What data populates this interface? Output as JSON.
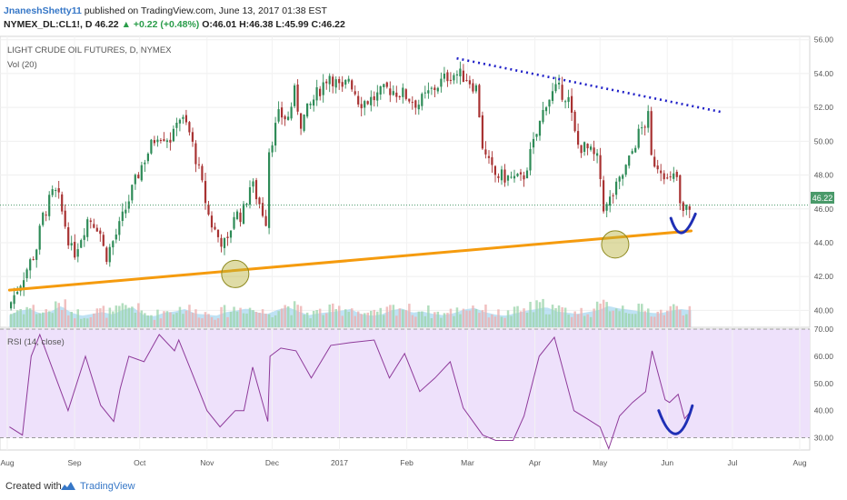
{
  "header": {
    "user": "JnaneshShetty11",
    "published": "published on TradingView.com, June 13, 2017 01:38 EST",
    "symbol": "NYMEX_DL:CL1!, D",
    "last": "46.22",
    "change": "+0.22 (+0.48%)",
    "open": "O:46.01",
    "high": "H:46.38",
    "low": "L:45.99",
    "close": "C:46.22"
  },
  "footer": {
    "created_with": "Created with",
    "brand": "TradingView"
  },
  "chart_data": [
    {
      "type": "line",
      "title": "LIGHT CRUDE OIL FUTURES, D, NYMEX",
      "subtitle": "Vol (20)",
      "last_price_label": "46.22",
      "ylim": [
        39,
        56.2
      ],
      "y_ticks": [
        40,
        42,
        44,
        46,
        48,
        50,
        52,
        54,
        56
      ],
      "y_tick_labels": [
        "40.00",
        "42.00",
        "44.00",
        "46.00",
        "48.00",
        "50.00",
        "52.00",
        "54.00",
        "56.00"
      ],
      "x_ticks": [
        "Aug",
        "Sep",
        "Oct",
        "Nov",
        "Dec",
        "2017",
        "Feb",
        "Mar",
        "Apr",
        "May",
        "Jun",
        "Jul",
        "Aug"
      ],
      "series": [
        {
          "x": [
            "2016-08-02",
            "2016-08-15",
            "2016-08-18",
            "2016-08-23",
            "2016-08-25",
            "2016-09-01",
            "2016-09-06",
            "2016-09-08",
            "2016-09-13",
            "2016-09-16",
            "2016-09-22",
            "2016-09-28",
            "2016-10-03",
            "2016-10-10",
            "2016-10-17",
            "2016-10-19",
            "2016-10-24",
            "2016-10-28",
            "2016-11-03",
            "2016-11-07",
            "2016-11-11",
            "2016-11-14",
            "2016-11-18",
            "2016-11-22",
            "2016-11-29",
            "2016-11-30",
            "2016-12-05",
            "2016-12-09",
            "2016-12-12",
            "2016-12-15",
            "2016-12-21",
            "2016-12-28",
            "2017-01-03",
            "2017-01-06",
            "2017-01-11",
            "2017-01-17",
            "2017-01-24",
            "2017-01-31",
            "2017-02-07",
            "2017-02-14",
            "2017-02-21",
            "2017-02-24",
            "2017-03-01",
            "2017-03-06",
            "2017-03-09",
            "2017-03-14",
            "2017-03-22",
            "2017-03-27",
            "2017-04-03",
            "2017-04-07",
            "2017-04-12",
            "2017-04-17",
            "2017-04-21",
            "2017-04-26",
            "2017-05-01",
            "2017-05-04",
            "2017-05-05",
            "2017-05-10",
            "2017-05-15",
            "2017-05-19",
            "2017-05-24",
            "2017-05-25",
            "2017-05-31",
            "2017-06-02",
            "2017-06-06",
            "2017-06-08",
            "2017-06-12"
          ],
          "values": [
            40.1,
            43.6,
            45.5,
            47.0,
            46.8,
            43.2,
            44.8,
            45.5,
            44.9,
            43.1,
            44.8,
            47.0,
            48.7,
            50.5,
            50.1,
            51.6,
            50.8,
            48.8,
            45.3,
            44.3,
            43.8,
            45.7,
            45.6,
            47.6,
            45.3,
            49.4,
            51.6,
            51.3,
            52.9,
            51.1,
            52.5,
            54.0,
            52.9,
            53.8,
            52.3,
            52.5,
            53.1,
            52.8,
            52.2,
            53.1,
            53.9,
            54.0,
            53.8,
            53.1,
            49.3,
            48.0,
            47.8,
            47.7,
            50.6,
            52.4,
            53.1,
            52.6,
            49.8,
            49.5,
            48.8,
            45.5,
            46.2,
            47.4,
            48.8,
            50.3,
            51.4,
            49.0,
            48.3,
            47.5,
            48.0,
            45.6,
            46.2
          ]
        }
      ],
      "volume": {
        "values": [
          40,
          55,
          60,
          45,
          52,
          70,
          48,
          38,
          44,
          50,
          42,
          58,
          65,
          40,
          36,
          48,
          52,
          60,
          45,
          42,
          38,
          50,
          55,
          62,
          48,
          44,
          58,
          66,
          52,
          40,
          46,
          50,
          54,
          60,
          44,
          38,
          42,
          56,
          62,
          48,
          52,
          44,
          40,
          46,
          58,
          64,
          50,
          42,
          38,
          46,
          54,
          60,
          66,
          52,
          48,
          44,
          50,
          56,
          70,
          62,
          58,
          52,
          48,
          46,
          54,
          60,
          56
        ]
      },
      "annotations": {
        "support_line": {
          "from": [
            "2016-08-02",
            41.2
          ],
          "to": [
            "2017-06-12",
            44.7
          ],
          "color": "#f59b0e"
        },
        "resistance_line": {
          "from": [
            "2017-02-24",
            54.9
          ],
          "to": [
            "2017-06-27",
            51.7
          ],
          "color": "#2020c8"
        },
        "circles": [
          [
            "2016-11-14",
            42.15
          ],
          [
            "2017-05-08",
            43.9
          ]
        ],
        "arc_color": "#1f2fb5"
      }
    },
    {
      "type": "line",
      "title": "RSI (14, close)",
      "ylim": [
        25.5,
        70
      ],
      "y_ticks": [
        30,
        40,
        50,
        60,
        70
      ],
      "y_tick_labels": [
        "30.00",
        "40.00",
        "50.00",
        "60.00",
        "70.00"
      ],
      "band": [
        30,
        70
      ],
      "series": [
        {
          "x": [
            "2016-08-02",
            "2016-08-08",
            "2016-08-12",
            "2016-08-16",
            "2016-08-22",
            "2016-08-29",
            "2016-09-06",
            "2016-09-13",
            "2016-09-19",
            "2016-09-22",
            "2016-09-26",
            "2016-10-03",
            "2016-10-10",
            "2016-10-17",
            "2016-10-19",
            "2016-10-24",
            "2016-11-01",
            "2016-11-07",
            "2016-11-14",
            "2016-11-18",
            "2016-11-22",
            "2016-11-29",
            "2016-11-30",
            "2016-12-05",
            "2016-12-12",
            "2016-12-19",
            "2016-12-28",
            "2017-01-06",
            "2017-01-17",
            "2017-01-24",
            "2017-01-31",
            "2017-02-07",
            "2017-02-14",
            "2017-02-21",
            "2017-02-27",
            "2017-03-08",
            "2017-03-14",
            "2017-03-22",
            "2017-03-27",
            "2017-04-03",
            "2017-04-10",
            "2017-04-13",
            "2017-04-19",
            "2017-04-25",
            "2017-05-01",
            "2017-05-05",
            "2017-05-10",
            "2017-05-16",
            "2017-05-22",
            "2017-05-25",
            "2017-05-31",
            "2017-06-02",
            "2017-06-06",
            "2017-06-09",
            "2017-06-12"
          ],
          "values": [
            34,
            31,
            60,
            68,
            55,
            40,
            60,
            42,
            36,
            48,
            60,
            58,
            68,
            62,
            66,
            56,
            40,
            34,
            40,
            40,
            56,
            36,
            60,
            63,
            62,
            52,
            64,
            65,
            66,
            52,
            61,
            47,
            52,
            58,
            41,
            31,
            29,
            29,
            38,
            60,
            67,
            58,
            40,
            37,
            34,
            26,
            38,
            43,
            47,
            62,
            44,
            43,
            46,
            37,
            40
          ]
        }
      ],
      "arc_color": "#1f2fb5"
    }
  ]
}
